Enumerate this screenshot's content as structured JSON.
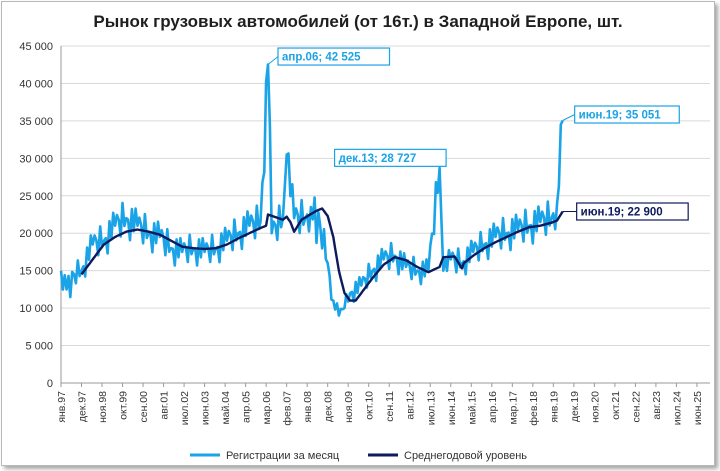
{
  "chart_data": {
    "type": "line",
    "title": "Рынок грузовых автомобилей (от 16т.) в Западной Европе, шт.",
    "xlabel": "",
    "ylabel": "",
    "ylim": [
      0,
      45000
    ],
    "yticks": [
      0,
      5000,
      10000,
      15000,
      20000,
      25000,
      30000,
      35000,
      40000,
      45000
    ],
    "ytick_labels": [
      "0",
      "5 000",
      "10 000",
      "15 000",
      "20 000",
      "25 000",
      "30 000",
      "35 000",
      "40 000",
      "45 000"
    ],
    "x_start_month": "1997-01",
    "x_end_month": "2025-12",
    "x_tick_labels": [
      "янв.97",
      "дек.97",
      "ноя.98",
      "окт.99",
      "сен.00",
      "авг.01",
      "июл.02",
      "июн.03",
      "май.04",
      "апр.05",
      "мар.06",
      "фев.07",
      "янв.08",
      "дек.08",
      "ноя.09",
      "окт.10",
      "сен.11",
      "авг.12",
      "июл.13",
      "июн.14",
      "май.15",
      "апр.16",
      "мар.17",
      "фев.18",
      "янв.19",
      "дек.19",
      "ноя.20",
      "окт.21",
      "сен.22",
      "авг.23",
      "июл.24",
      "июн.25"
    ],
    "grid": true,
    "legend_position": "bottom",
    "series": [
      {
        "name": "Регистрации за месяц",
        "color": "#1aa3e6",
        "anchors": [
          [
            "1997-01",
            15000
          ],
          [
            "1997-04",
            12500
          ],
          [
            "1997-08",
            14500
          ],
          [
            "1997-12",
            15000
          ],
          [
            "1998-06",
            18500
          ],
          [
            "1998-12",
            19000
          ],
          [
            "1999-06",
            21000
          ],
          [
            "1999-12",
            22000
          ],
          [
            "2000-06",
            21000
          ],
          [
            "2000-12",
            20000
          ],
          [
            "2001-06",
            19500
          ],
          [
            "2001-12",
            18000
          ],
          [
            "2002-06",
            17500
          ],
          [
            "2002-12",
            18000
          ],
          [
            "2003-06",
            17500
          ],
          [
            "2003-12",
            18000
          ],
          [
            "2004-06",
            19000
          ],
          [
            "2004-12",
            20000
          ],
          [
            "2005-06",
            21000
          ],
          [
            "2005-12",
            21500
          ],
          [
            "2006-04",
            42525
          ],
          [
            "2006-06",
            20000
          ],
          [
            "2006-12",
            22000
          ],
          [
            "2007-02",
            30500
          ],
          [
            "2007-06",
            22000
          ],
          [
            "2007-12",
            22000
          ],
          [
            "2008-03",
            23500
          ],
          [
            "2008-08",
            21000
          ],
          [
            "2008-12",
            16000
          ],
          [
            "2009-03",
            11000
          ],
          [
            "2009-06",
            9000
          ],
          [
            "2009-09",
            10000
          ],
          [
            "2009-12",
            12000
          ],
          [
            "2010-06",
            13000
          ],
          [
            "2010-12",
            15000
          ],
          [
            "2011-06",
            16500
          ],
          [
            "2011-12",
            17000
          ],
          [
            "2012-06",
            15500
          ],
          [
            "2012-12",
            15000
          ],
          [
            "2013-06",
            15000
          ],
          [
            "2013-12",
            28727
          ],
          [
            "2014-02",
            15000
          ],
          [
            "2014-06",
            16500
          ],
          [
            "2014-12",
            16000
          ],
          [
            "2015-06",
            17500
          ],
          [
            "2015-12",
            18500
          ],
          [
            "2016-06",
            19500
          ],
          [
            "2016-12",
            20000
          ],
          [
            "2017-06",
            20500
          ],
          [
            "2017-12",
            21000
          ],
          [
            "2018-06",
            21500
          ],
          [
            "2018-12",
            22000
          ],
          [
            "2019-03",
            24000
          ],
          [
            "2019-06",
            35051
          ]
        ]
      },
      {
        "name": "Среднегодовой уровень",
        "color": "#0d1a5c",
        "anchors": [
          [
            "1997-12",
            14500
          ],
          [
            "1998-06",
            16500
          ],
          [
            "1998-12",
            18500
          ],
          [
            "1999-06",
            19500
          ],
          [
            "1999-12",
            20200
          ],
          [
            "2000-06",
            20500
          ],
          [
            "2000-12",
            20200
          ],
          [
            "2001-06",
            19800
          ],
          [
            "2001-12",
            19000
          ],
          [
            "2002-06",
            18200
          ],
          [
            "2002-12",
            18000
          ],
          [
            "2003-06",
            17900
          ],
          [
            "2003-12",
            18000
          ],
          [
            "2004-06",
            18500
          ],
          [
            "2004-12",
            19300
          ],
          [
            "2005-06",
            20000
          ],
          [
            "2005-12",
            20700
          ],
          [
            "2006-03",
            21000
          ],
          [
            "2006-04",
            22500
          ],
          [
            "2006-12",
            21800
          ],
          [
            "2007-02",
            22200
          ],
          [
            "2007-04",
            21500
          ],
          [
            "2007-06",
            20200
          ],
          [
            "2007-10",
            21800
          ],
          [
            "2008-06",
            23000
          ],
          [
            "2008-09",
            23300
          ],
          [
            "2008-12",
            22300
          ],
          [
            "2009-03",
            19500
          ],
          [
            "2009-06",
            15000
          ],
          [
            "2009-09",
            12000
          ],
          [
            "2009-12",
            11000
          ],
          [
            "2010-03",
            11000
          ],
          [
            "2010-06",
            12000
          ],
          [
            "2010-12",
            14000
          ],
          [
            "2011-06",
            15800
          ],
          [
            "2011-12",
            16800
          ],
          [
            "2012-06",
            16400
          ],
          [
            "2012-12",
            15500
          ],
          [
            "2013-06",
            14800
          ],
          [
            "2013-12",
            15500
          ],
          [
            "2014-02",
            16800
          ],
          [
            "2014-08",
            16900
          ],
          [
            "2014-12",
            15300
          ],
          [
            "2015-01",
            16000
          ],
          [
            "2015-06",
            17000
          ],
          [
            "2015-12",
            18000
          ],
          [
            "2016-06",
            18800
          ],
          [
            "2016-12",
            19500
          ],
          [
            "2017-06",
            20200
          ],
          [
            "2017-12",
            20800
          ],
          [
            "2018-06",
            21000
          ],
          [
            "2018-12",
            21400
          ],
          [
            "2019-03",
            21700
          ],
          [
            "2019-06",
            22900
          ]
        ]
      }
    ],
    "annotations": [
      {
        "text": "апр.06;  42 525",
        "month": "2006-04",
        "value": 42525,
        "color": "#1aa3e6",
        "border": "#1aa3e6"
      },
      {
        "text": "дек.13;  28 727",
        "month": "2013-12",
        "value": 28727,
        "color": "#1aa3e6",
        "border": "#1aa3e6"
      },
      {
        "text": "июн.19; 35 051",
        "month": "2019-06",
        "value": 35051,
        "color": "#1aa3e6",
        "border": "#1aa3e6"
      },
      {
        "text": "июн.19;  22 900",
        "month": "2019-06",
        "value": 22900,
        "color": "#0d1a5c",
        "border": "#0d1a5c"
      }
    ]
  }
}
